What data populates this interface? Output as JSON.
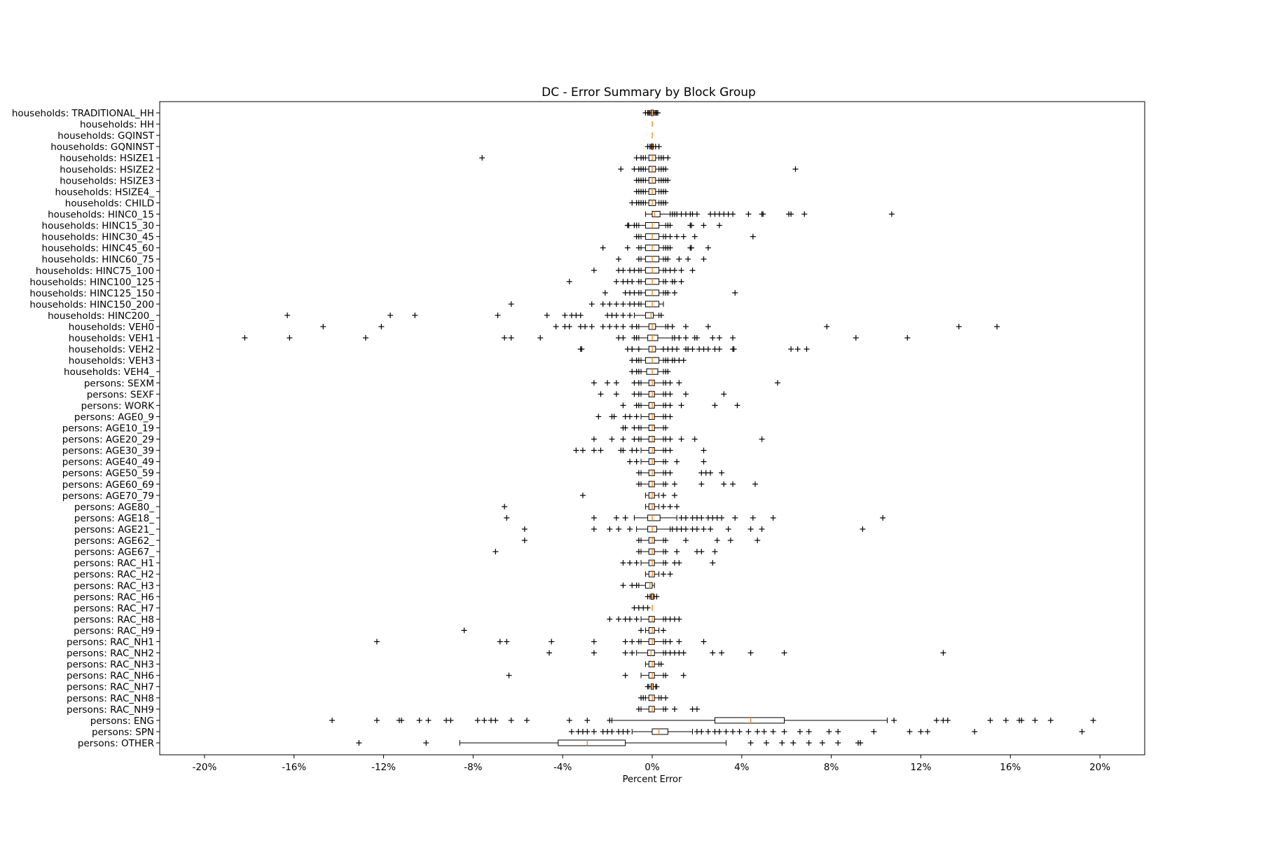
{
  "chart_data": {
    "type": "boxplot",
    "orientation": "horizontal",
    "title": "DC - Error Summary by Block Group",
    "xlabel": "Percent Error",
    "ylabel": "",
    "xlim": [
      -22,
      22
    ],
    "xticks": [
      -20,
      -16,
      -12,
      -8,
      -4,
      0,
      4,
      8,
      12,
      16,
      20
    ],
    "xtick_labels": [
      "-20%",
      "-16%",
      "-12%",
      "-8%",
      "-4%",
      "0%",
      "4%",
      "8%",
      "12%",
      "16%",
      "20%"
    ],
    "grid": false,
    "colors": {
      "box": "#000000",
      "median": "#ff7f0e",
      "flier": "#000000"
    },
    "categories": [
      "households: TRADITIONAL_HH",
      "households: HH",
      "households: GQINST",
      "households: GQNINST",
      "households: HSIZE1",
      "households: HSIZE2",
      "households: HSIZE3",
      "households: HSIZE4_",
      "households: CHILD",
      "households: HINC0_15",
      "households: HINC15_30",
      "households: HINC30_45",
      "households: HINC45_60",
      "households: HINC60_75",
      "households: HINC75_100",
      "households: HINC100_125",
      "households: HINC125_150",
      "households: HINC150_200",
      "households: HINC200_",
      "households: VEH0",
      "households: VEH1",
      "households: VEH2",
      "households: VEH3",
      "households: VEH4_",
      "persons: SEXM",
      "persons: SEXF",
      "persons: WORK",
      "persons: AGE0_9",
      "persons: AGE10_19",
      "persons: AGE20_29",
      "persons: AGE30_39",
      "persons: AGE40_49",
      "persons: AGE50_59",
      "persons: AGE60_69",
      "persons: AGE70_79",
      "persons: AGE80_",
      "persons: AGE18_",
      "persons: AGE21_",
      "persons: AGE62_",
      "persons: AGE67_",
      "persons: RAC_H1",
      "persons: RAC_H2",
      "persons: RAC_H3",
      "persons: RAC_H6",
      "persons: RAC_H7",
      "persons: RAC_H8",
      "persons: RAC_H9",
      "persons: RAC_NH1",
      "persons: RAC_NH2",
      "persons: RAC_NH3",
      "persons: RAC_NH6",
      "persons: RAC_NH7",
      "persons: RAC_NH8",
      "persons: RAC_NH9",
      "persons: ENG",
      "persons: SPN",
      "persons: OTHER"
    ],
    "boxes": [
      {
        "q1": -0.05,
        "median": 0,
        "q3": 0.05,
        "whisker_low": -0.1,
        "whisker_high": 0.1,
        "fliers": [
          -0.3,
          -0.2,
          -0.15,
          0.15,
          0.2,
          0.25
        ]
      },
      {
        "q1": 0,
        "median": 0,
        "q3": 0,
        "whisker_low": 0,
        "whisker_high": 0,
        "fliers": []
      },
      {
        "q1": 0,
        "median": 0,
        "q3": 0,
        "whisker_low": 0,
        "whisker_high": 0,
        "fliers": []
      },
      {
        "q1": -0.02,
        "median": 0,
        "q3": 0.02,
        "whisker_low": -0.05,
        "whisker_high": 0.05,
        "fliers": [
          -0.2,
          -0.1,
          0.15,
          0.3
        ]
      },
      {
        "q1": -0.15,
        "median": 0,
        "q3": 0.15,
        "whisker_low": -0.3,
        "whisker_high": 0.3,
        "fliers": [
          -7.6,
          -0.7,
          -0.5,
          -0.4,
          0.4,
          0.5,
          0.7
        ]
      },
      {
        "q1": -0.15,
        "median": 0,
        "q3": 0.15,
        "whisker_low": -0.3,
        "whisker_high": 0.3,
        "fliers": [
          -1.4,
          -0.8,
          -0.6,
          -0.5,
          -0.4,
          0.4,
          0.5,
          0.6,
          6.4
        ]
      },
      {
        "q1": -0.15,
        "median": 0,
        "q3": 0.15,
        "whisker_low": -0.3,
        "whisker_high": 0.3,
        "fliers": [
          -0.7,
          -0.6,
          -0.5,
          -0.4,
          0.4,
          0.5,
          0.6,
          0.7
        ]
      },
      {
        "q1": -0.15,
        "median": 0,
        "q3": 0.15,
        "whisker_low": -0.3,
        "whisker_high": 0.3,
        "fliers": [
          -0.7,
          -0.6,
          -0.5,
          -0.4,
          0.4,
          0.5,
          0.6
        ]
      },
      {
        "q1": -0.15,
        "median": 0,
        "q3": 0.15,
        "whisker_low": -0.3,
        "whisker_high": 0.3,
        "fliers": [
          -0.9,
          -0.7,
          -0.6,
          -0.5,
          -0.4,
          0.4,
          0.5,
          0.6
        ]
      },
      {
        "q1": 0,
        "median": 0.1,
        "q3": 0.35,
        "whisker_low": -0.3,
        "whisker_high": 0.8,
        "fliers": [
          0.9,
          1.0,
          1.1,
          1.3,
          1.5,
          1.7,
          1.8,
          2.0,
          2.6,
          2.8,
          3.0,
          3.2,
          3.4,
          3.6,
          4.3,
          4.9,
          4.95,
          6.1,
          6.2,
          6.8,
          10.7
        ]
      },
      {
        "q1": -0.3,
        "median": 0,
        "q3": 0.3,
        "whisker_low": -0.6,
        "whisker_high": 0.6,
        "fliers": [
          -1.1,
          -1.05,
          -0.8,
          -0.7,
          0.7,
          0.8,
          1.7,
          1.75,
          2.3,
          3.0
        ]
      },
      {
        "q1": -0.3,
        "median": 0,
        "q3": 0.3,
        "whisker_low": -0.5,
        "whisker_high": 0.5,
        "fliers": [
          -0.7,
          -0.6,
          0.6,
          0.8,
          1.1,
          1.4,
          1.9,
          4.5
        ]
      },
      {
        "q1": -0.3,
        "median": 0,
        "q3": 0.3,
        "whisker_low": -0.5,
        "whisker_high": 0.5,
        "fliers": [
          -2.2,
          -1.1,
          -0.6,
          0.6,
          0.7,
          0.8,
          1.7,
          1.75,
          2.5
        ]
      },
      {
        "q1": -0.3,
        "median": 0,
        "q3": 0.3,
        "whisker_low": -0.5,
        "whisker_high": 0.5,
        "fliers": [
          -1.5,
          -0.6,
          0.6,
          0.7,
          1.2,
          1.6,
          2.3
        ]
      },
      {
        "q1": -0.3,
        "median": 0,
        "q3": 0.3,
        "whisker_low": -0.5,
        "whisker_high": 0.5,
        "fliers": [
          -2.6,
          -1.5,
          -1.3,
          -1.0,
          -0.8,
          -0.6,
          0.6,
          0.8,
          1.0,
          1.3,
          1.8
        ]
      },
      {
        "q1": -0.3,
        "median": 0,
        "q3": 0.3,
        "whisker_low": -0.5,
        "whisker_high": 0.5,
        "fliers": [
          -3.7,
          -1.6,
          -1.3,
          -1.1,
          -0.9,
          -0.6,
          0.6,
          0.9,
          1.0,
          1.3
        ]
      },
      {
        "q1": -0.3,
        "median": 0,
        "q3": 0.3,
        "whisker_low": -0.5,
        "whisker_high": 0.5,
        "fliers": [
          -2.1,
          -1.2,
          -1.0,
          -0.8,
          -0.6,
          0.6,
          0.7,
          1.0,
          3.7
        ]
      },
      {
        "q1": -0.3,
        "median": 0,
        "q3": 0.3,
        "whisker_low": -0.5,
        "whisker_high": 0.5,
        "fliers": [
          -6.3,
          -2.7,
          -2.2,
          -1.9,
          -1.6,
          -1.3,
          -1.0,
          -0.8,
          -0.6
        ]
      },
      {
        "q1": -0.3,
        "median": -0.05,
        "q3": 0.05,
        "whisker_low": -0.8,
        "whisker_high": 0.3,
        "fliers": [
          -16.3,
          -11.7,
          -10.6,
          -6.9,
          -4.7,
          -3.9,
          -3.6,
          -3.4,
          -3.2,
          -2.0,
          -1.8,
          -1.6,
          -1.3,
          -1.0,
          0.4
        ]
      },
      {
        "q1": -0.15,
        "median": 0,
        "q3": 0.15,
        "whisker_low": -0.6,
        "whisker_high": 0.6,
        "fliers": [
          -14.7,
          -12.1,
          -4.3,
          -3.9,
          -3.7,
          -3.2,
          -3.0,
          -2.7,
          -2.2,
          -1.9,
          -1.6,
          -1.3,
          -0.9,
          -0.7,
          0.7,
          0.9,
          1.5,
          2.5,
          7.8,
          13.7,
          15.4
        ]
      },
      {
        "q1": -0.2,
        "median": 0,
        "q3": 0.25,
        "whisker_low": -0.6,
        "whisker_high": 0.9,
        "fliers": [
          -18.2,
          -16.2,
          -12.8,
          -6.6,
          -6.3,
          -5.0,
          -1.5,
          -1.3,
          -0.8,
          -0.7,
          1.0,
          1.2,
          1.5,
          1.9,
          2.0,
          2.7,
          3.0,
          3.6,
          9.1,
          11.4
        ]
      },
      {
        "q1": -0.15,
        "median": 0,
        "q3": 0.15,
        "whisker_low": -0.9,
        "whisker_high": 0.5,
        "fliers": [
          -3.2,
          -3.15,
          -1.1,
          -0.9,
          -0.6,
          0.5,
          0.7,
          0.9,
          1.1,
          1.5,
          1.6,
          1.8,
          2.1,
          2.3,
          2.5,
          2.8,
          3.0,
          3.6,
          3.65,
          6.2,
          6.5,
          6.9
        ]
      },
      {
        "q1": -0.3,
        "median": 0,
        "q3": 0.3,
        "whisker_low": -0.5,
        "whisker_high": 0.5,
        "fliers": [
          -0.9,
          -0.7,
          -0.6,
          0.6,
          0.7,
          0.9,
          1.0,
          1.2,
          1.4
        ]
      },
      {
        "q1": -0.25,
        "median": 0,
        "q3": 0.25,
        "whisker_low": -0.5,
        "whisker_high": 0.5,
        "fliers": [
          -0.9,
          -0.7,
          -0.6,
          0.6,
          0.7
        ]
      },
      {
        "q1": -0.15,
        "median": 0,
        "q3": 0.1,
        "whisker_low": -0.5,
        "whisker_high": 0.5,
        "fliers": [
          -2.6,
          -2.0,
          -1.6,
          -0.8,
          -0.6,
          0.6,
          0.8,
          1.2,
          5.6
        ]
      },
      {
        "q1": -0.15,
        "median": 0,
        "q3": 0.1,
        "whisker_low": -0.5,
        "whisker_high": 0.5,
        "fliers": [
          -2.3,
          -1.6,
          -0.8,
          -0.6,
          0.6,
          0.8,
          1.5,
          3.2
        ]
      },
      {
        "q1": -0.15,
        "median": 0,
        "q3": 0.1,
        "whisker_low": -0.5,
        "whisker_high": 0.5,
        "fliers": [
          -1.3,
          -0.7,
          -0.6,
          0.6,
          0.8,
          1.3,
          2.8,
          3.8
        ]
      },
      {
        "q1": -0.15,
        "median": 0,
        "q3": 0.1,
        "whisker_low": -0.5,
        "whisker_high": 0.5,
        "fliers": [
          -2.4,
          -1.8,
          -1.7,
          -1.2,
          -1.0,
          -0.7,
          0.6,
          0.8
        ]
      },
      {
        "q1": -0.15,
        "median": 0,
        "q3": 0.1,
        "whisker_low": -0.5,
        "whisker_high": 0.5,
        "fliers": [
          -1.3,
          -1.2,
          -0.8,
          -0.6,
          0.6
        ]
      },
      {
        "q1": -0.15,
        "median": 0,
        "q3": 0.1,
        "whisker_low": -0.5,
        "whisker_high": 0.5,
        "fliers": [
          -2.6,
          -1.8,
          -1.3,
          -0.8,
          -0.6,
          0.6,
          0.8,
          1.3,
          1.9,
          4.9
        ]
      },
      {
        "q1": -0.15,
        "median": 0,
        "q3": 0.1,
        "whisker_low": -0.5,
        "whisker_high": 0.5,
        "fliers": [
          -3.4,
          -3.1,
          -2.6,
          -2.3,
          -1.4,
          -1.3,
          -0.9,
          -0.7,
          0.6,
          0.8,
          2.3
        ]
      },
      {
        "q1": -0.15,
        "median": 0,
        "q3": 0.1,
        "whisker_low": -0.5,
        "whisker_high": 0.5,
        "fliers": [
          -1.0,
          -0.7,
          0.6,
          1.1,
          2.3
        ]
      },
      {
        "q1": -0.15,
        "median": 0,
        "q3": 0.1,
        "whisker_low": -0.5,
        "whisker_high": 0.5,
        "fliers": [
          -0.6,
          0.6,
          0.8,
          2.2,
          2.4,
          2.6,
          3.1
        ]
      },
      {
        "q1": -0.15,
        "median": 0,
        "q3": 0.1,
        "whisker_low": -0.5,
        "whisker_high": 0.5,
        "fliers": [
          -0.6,
          0.6,
          1.0,
          2.2,
          3.2,
          3.6,
          4.6
        ]
      },
      {
        "q1": -0.15,
        "median": 0,
        "q3": 0.1,
        "whisker_low": -0.3,
        "whisker_high": 0.3,
        "fliers": [
          -3.1,
          0.5,
          1.0
        ]
      },
      {
        "q1": -0.15,
        "median": 0,
        "q3": 0.1,
        "whisker_low": -0.3,
        "whisker_high": 0.3,
        "fliers": [
          -6.6,
          0.5,
          0.8,
          1.1
        ]
      },
      {
        "q1": -0.2,
        "median": 0,
        "q3": 0.35,
        "whisker_low": -0.8,
        "whisker_high": 1.1,
        "fliers": [
          -6.5,
          -2.6,
          -1.6,
          -1.2,
          1.3,
          1.5,
          1.8,
          2.0,
          2.2,
          2.5,
          2.7,
          2.9,
          3.1,
          3.7,
          4.5,
          5.4,
          10.3
        ]
      },
      {
        "q1": -0.2,
        "median": 0,
        "q3": 0.2,
        "whisker_low": -0.7,
        "whisker_high": 0.8,
        "fliers": [
          -5.7,
          -2.6,
          -1.9,
          -1.5,
          -1.0,
          0.9,
          1.1,
          1.3,
          1.5,
          1.8,
          2.0,
          2.3,
          2.6,
          3.4,
          4.4,
          4.9,
          9.4
        ]
      },
      {
        "q1": -0.15,
        "median": 0,
        "q3": 0.1,
        "whisker_low": -0.5,
        "whisker_high": 0.5,
        "fliers": [
          -5.7,
          -0.6,
          0.6,
          1.5,
          2.9,
          3.5,
          4.7
        ]
      },
      {
        "q1": -0.15,
        "median": 0,
        "q3": 0.1,
        "whisker_low": -0.5,
        "whisker_high": 0.5,
        "fliers": [
          -7.0,
          -0.6,
          0.6,
          1.1,
          2.0,
          2.2,
          2.8
        ]
      },
      {
        "q1": -0.15,
        "median": 0,
        "q3": 0.1,
        "whisker_low": -0.5,
        "whisker_high": 0.5,
        "fliers": [
          -1.3,
          -1.0,
          -0.7,
          0.6,
          1.0,
          1.2,
          2.7
        ]
      },
      {
        "q1": -0.15,
        "median": 0,
        "q3": 0.1,
        "whisker_low": -0.3,
        "whisker_high": 0.3,
        "fliers": [
          0.5,
          0.8
        ]
      },
      {
        "q1": -0.3,
        "median": -0.1,
        "q3": 0,
        "whisker_low": -0.6,
        "whisker_high": 0.1,
        "fliers": [
          -1.3,
          -0.9,
          -0.7
        ]
      },
      {
        "q1": -0.05,
        "median": 0,
        "q3": 0.05,
        "whisker_low": -0.1,
        "whisker_high": 0.1,
        "fliers": [
          -0.2,
          0.2
        ]
      },
      {
        "q1": 0,
        "median": 0,
        "q3": 0,
        "whisker_low": 0,
        "whisker_high": 0,
        "fliers": [
          -0.8,
          -0.6,
          -0.4,
          -0.2
        ]
      },
      {
        "q1": -0.15,
        "median": 0,
        "q3": 0.1,
        "whisker_low": -0.5,
        "whisker_high": 0.5,
        "fliers": [
          -1.9,
          -1.5,
          -1.2,
          -1.0,
          -0.7,
          0.6,
          0.8,
          1.0,
          1.2
        ]
      },
      {
        "q1": -0.15,
        "median": 0,
        "q3": 0.1,
        "whisker_low": -0.3,
        "whisker_high": 0.3,
        "fliers": [
          -8.4,
          -0.5,
          0.5
        ]
      },
      {
        "q1": -0.15,
        "median": 0,
        "q3": 0.1,
        "whisker_low": -0.5,
        "whisker_high": 0.5,
        "fliers": [
          -12.3,
          -6.8,
          -6.5,
          -4.5,
          -2.6,
          -1.2,
          -0.9,
          -0.6,
          0.6,
          0.8,
          1.2,
          2.3
        ]
      },
      {
        "q1": -0.2,
        "median": -0.05,
        "q3": 0.1,
        "whisker_low": -0.7,
        "whisker_high": 0.5,
        "fliers": [
          -4.6,
          -2.6,
          -1.2,
          -0.9,
          0.6,
          0.8,
          1.0,
          1.2,
          1.4,
          2.7,
          3.1,
          4.4,
          5.9,
          13.0
        ]
      },
      {
        "q1": -0.15,
        "median": 0,
        "q3": 0.1,
        "whisker_low": -0.3,
        "whisker_high": 0.3,
        "fliers": [
          0.4
        ]
      },
      {
        "q1": -0.15,
        "median": 0,
        "q3": 0.1,
        "whisker_low": -0.5,
        "whisker_high": 0.5,
        "fliers": [
          -6.4,
          -1.2,
          0.6,
          1.4
        ]
      },
      {
        "q1": -0.05,
        "median": 0,
        "q3": 0.05,
        "whisker_low": -0.15,
        "whisker_high": 0.15,
        "fliers": [
          -0.2,
          0.2
        ]
      },
      {
        "q1": -0.15,
        "median": 0,
        "q3": 0.1,
        "whisker_low": -0.3,
        "whisker_high": 0.3,
        "fliers": [
          -0.5,
          -0.4,
          0.4,
          0.6
        ]
      },
      {
        "q1": -0.15,
        "median": 0,
        "q3": 0.1,
        "whisker_low": -0.5,
        "whisker_high": 0.5,
        "fliers": [
          -0.6,
          0.6,
          1.0,
          1.8,
          2.0
        ]
      },
      {
        "q1": 2.8,
        "median": 4.4,
        "q3": 5.9,
        "whisker_low": -1.8,
        "whisker_high": 10.5,
        "fliers": [
          -14.3,
          -12.3,
          -11.3,
          -11.2,
          -10.4,
          -10.0,
          -9.2,
          -9.0,
          -7.8,
          -7.5,
          -7.2,
          -7.0,
          -6.3,
          -5.6,
          -3.7,
          -2.9,
          -1.9,
          10.8,
          12.7,
          13.0,
          13.2,
          15.1,
          15.8,
          16.4,
          16.5,
          17.1,
          17.8,
          19.7
        ]
      },
      {
        "q1": 0,
        "median": 0.3,
        "q3": 0.7,
        "whisker_low": -0.9,
        "whisker_high": 1.8,
        "fliers": [
          -3.6,
          -3.3,
          -3.1,
          -2.9,
          -2.6,
          -2.2,
          -2.0,
          -1.8,
          -1.5,
          -1.3,
          -1.1,
          2.0,
          2.2,
          2.5,
          2.8,
          3.0,
          3.3,
          3.6,
          3.9,
          4.3,
          4.7,
          5.0,
          5.4,
          5.9,
          6.6,
          7.0,
          7.9,
          8.3,
          9.9,
          11.5,
          12.0,
          12.3,
          14.4,
          19.2
        ]
      },
      {
        "q1": -4.2,
        "median": -2.9,
        "q3": -1.2,
        "whisker_low": -8.6,
        "whisker_high": 3.3,
        "fliers": [
          -13.1,
          -10.1,
          4.4,
          5.1,
          5.8,
          6.3,
          7.0,
          7.6,
          8.3,
          9.2,
          9.3
        ]
      }
    ]
  }
}
